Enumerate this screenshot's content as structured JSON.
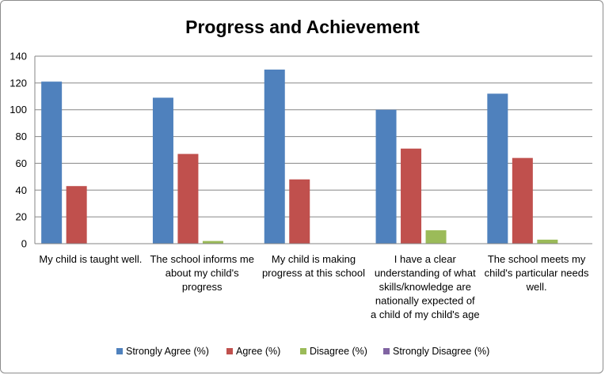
{
  "chart_data": {
    "type": "bar",
    "title": "Progress and Achievement",
    "xlabel": "",
    "ylabel": "",
    "ylim": [
      0,
      140
    ],
    "yticks": [
      0,
      20,
      40,
      60,
      80,
      100,
      120,
      140
    ],
    "grid": true,
    "legend_position": "bottom",
    "categories": [
      [
        "My child is taught well."
      ],
      [
        "The school informs me",
        "about my child's",
        "progress"
      ],
      [
        "My child is making",
        "progress at this school"
      ],
      [
        "I have a clear",
        "understanding of what",
        "skills/knowledge are",
        "nationally expected of",
        "a child of my child's age"
      ],
      [
        "The school meets my",
        "child's particular needs",
        "well."
      ]
    ],
    "series": [
      {
        "name": "Strongly Agree (%)",
        "color": "#4f81bd",
        "values": [
          121,
          109,
          130,
          100,
          112
        ]
      },
      {
        "name": "Agree (%)",
        "color": "#c0504d",
        "values": [
          43,
          67,
          48,
          71,
          64
        ]
      },
      {
        "name": "Disagree (%)",
        "color": "#9bbb59",
        "values": [
          0,
          2,
          0,
          10,
          3
        ]
      },
      {
        "name": "Strongly Disagree (%)",
        "color": "#8064a2",
        "values": [
          0,
          0,
          0,
          0,
          0
        ]
      }
    ]
  }
}
